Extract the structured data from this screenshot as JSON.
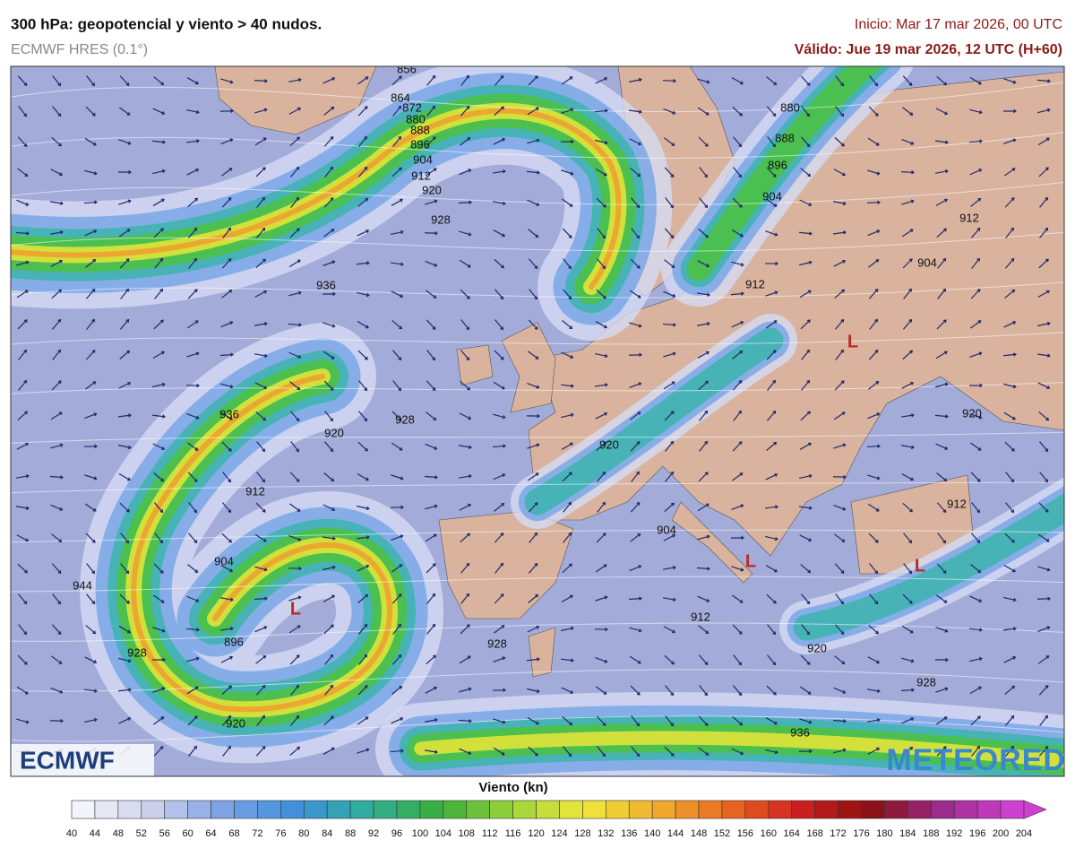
{
  "header": {
    "title": "300 hPa: geopotencial y viento > 40 nudos.",
    "model": "ECMWF HRES (0.1°)",
    "init": "Inicio: Mar 17 mar 2026, 00 UTC",
    "valid": "Válido: Jue 19 mar 2026, 12 UTC (H+60)"
  },
  "map": {
    "contour_labels": [
      "856",
      "864",
      "872",
      "880",
      "888",
      "896",
      "904",
      "912",
      "920",
      "928",
      "936",
      "880",
      "888",
      "896",
      "904",
      "912",
      "904",
      "912",
      "920",
      "936",
      "928",
      "920",
      "912",
      "920",
      "912",
      "904",
      "904",
      "944",
      "896",
      "928",
      "928",
      "912",
      "920",
      "928",
      "920",
      "936"
    ],
    "lows": [
      "L",
      "L",
      "L",
      "L"
    ],
    "logos": [
      "ECMWF",
      "METEORED"
    ]
  },
  "legend": {
    "title": "Viento (kn)",
    "ticks": [
      40,
      44,
      48,
      52,
      56,
      60,
      64,
      68,
      72,
      76,
      80,
      84,
      88,
      92,
      96,
      100,
      104,
      108,
      112,
      116,
      120,
      124,
      128,
      132,
      136,
      140,
      144,
      148,
      152,
      156,
      160,
      164,
      168,
      172,
      176,
      180,
      184,
      188,
      192,
      196,
      200,
      204
    ]
  }
}
